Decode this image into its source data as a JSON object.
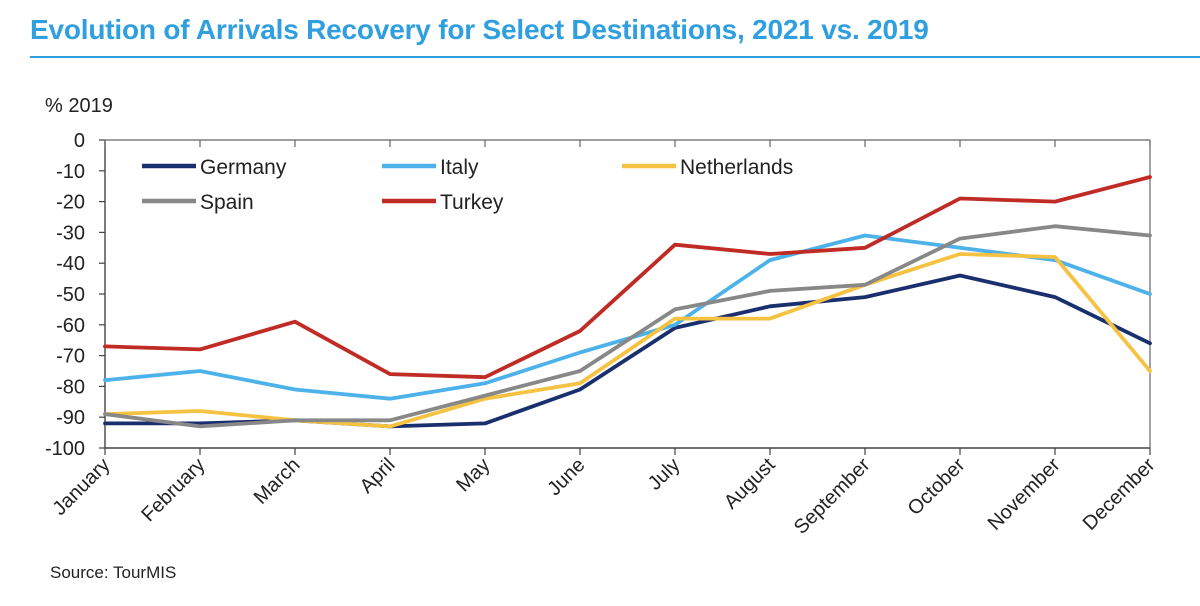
{
  "title": "Evolution of Arrivals Recovery for Select Destinations, 2021 vs. 2019",
  "source": "Source: TourMIS",
  "chart_data": {
    "type": "line",
    "ylabel": "% 2019",
    "ylim": [
      -100,
      0
    ],
    "yticks": [
      0,
      -10,
      -20,
      -30,
      -40,
      -50,
      -60,
      -70,
      -80,
      -90,
      -100
    ],
    "categories": [
      "January",
      "February",
      "March",
      "April",
      "May",
      "June",
      "July",
      "August",
      "September",
      "October",
      "November",
      "December"
    ],
    "legend_position": "top-left, inside plot",
    "grid": false,
    "series": [
      {
        "name": "Germany",
        "color": "#1a2f6e",
        "values": [
          -92,
          -92,
          -91,
          -93,
          -92,
          -81,
          -61,
          -54,
          -51,
          -44,
          -51,
          -66
        ]
      },
      {
        "name": "Italy",
        "color": "#4db1ea",
        "values": [
          -78,
          -75,
          -81,
          -84,
          -79,
          -69,
          -60,
          -39,
          -31,
          -35,
          -39,
          -50
        ]
      },
      {
        "name": "Netherlands",
        "color": "#f5c242",
        "values": [
          -89,
          -88,
          -91,
          -93,
          -84,
          -79,
          -58,
          -58,
          -47,
          -37,
          -38,
          -75
        ]
      },
      {
        "name": "Spain",
        "color": "#888888",
        "values": [
          -89,
          -93,
          -91,
          -91,
          -83,
          -75,
          -55,
          -49,
          -47,
          -32,
          -28,
          -31
        ]
      },
      {
        "name": "Turkey",
        "color": "#c02b25",
        "values": [
          -67,
          -68,
          -59,
          -76,
          -77,
          -62,
          -34,
          -37,
          -35,
          -19,
          -20,
          -12
        ]
      }
    ]
  }
}
